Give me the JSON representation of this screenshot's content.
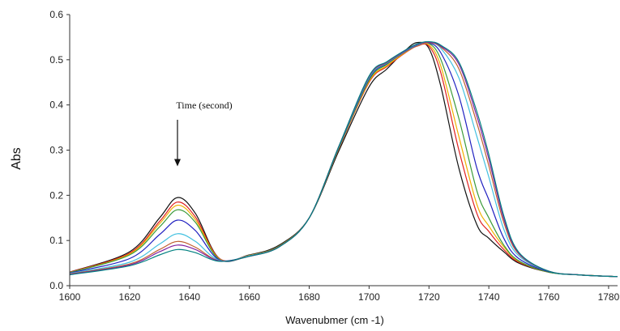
{
  "chart_data": {
    "type": "line",
    "title": "",
    "xlabel": "Wavenubmer (cm -1)",
    "ylabel": "Abs",
    "xlim": [
      1600,
      1783
    ],
    "ylim": [
      0,
      0.6
    ],
    "xticks": [
      1600,
      1620,
      1640,
      1660,
      1680,
      1700,
      1720,
      1740,
      1760,
      1780
    ],
    "yticks": [
      0.0,
      0.1,
      0.2,
      0.3,
      0.4,
      0.5,
      0.6
    ],
    "ytick_labels": [
      "0.0",
      "0.1",
      "0.2",
      "0.3",
      "0.4",
      "0.5",
      "0.6"
    ],
    "grid": false,
    "legend": "none",
    "annotation": {
      "text": "Time (second)",
      "arrow_to": [
        1636,
        0.3
      ]
    },
    "x": [
      1600,
      1620,
      1630,
      1636,
      1642,
      1650,
      1660,
      1670,
      1680,
      1690,
      1700,
      1706,
      1712,
      1716,
      1720,
      1724,
      1730,
      1736,
      1740,
      1745,
      1750,
      1760,
      1770,
      1783
    ],
    "series": [
      {
        "color": "#111111",
        "values": [
          0.03,
          0.075,
          0.15,
          0.195,
          0.16,
          0.06,
          0.068,
          0.09,
          0.15,
          0.3,
          0.44,
          0.48,
          0.52,
          0.538,
          0.525,
          0.44,
          0.26,
          0.135,
          0.105,
          0.075,
          0.05,
          0.03,
          0.024,
          0.02
        ]
      },
      {
        "color": "#e02020",
        "values": [
          0.03,
          0.072,
          0.142,
          0.185,
          0.152,
          0.06,
          0.067,
          0.088,
          0.15,
          0.305,
          0.45,
          0.485,
          0.515,
          0.53,
          0.53,
          0.47,
          0.3,
          0.16,
          0.12,
          0.08,
          0.052,
          0.03,
          0.024,
          0.02
        ]
      },
      {
        "color": "#f0b000",
        "values": [
          0.029,
          0.07,
          0.137,
          0.178,
          0.146,
          0.059,
          0.067,
          0.088,
          0.15,
          0.306,
          0.452,
          0.487,
          0.516,
          0.531,
          0.533,
          0.485,
          0.33,
          0.18,
          0.132,
          0.086,
          0.054,
          0.03,
          0.024,
          0.02
        ]
      },
      {
        "color": "#3a9a3a",
        "values": [
          0.029,
          0.068,
          0.13,
          0.168,
          0.14,
          0.058,
          0.066,
          0.088,
          0.15,
          0.307,
          0.455,
          0.49,
          0.518,
          0.532,
          0.536,
          0.5,
          0.37,
          0.21,
          0.15,
          0.09,
          0.055,
          0.03,
          0.024,
          0.02
        ]
      },
      {
        "color": "#2020c0",
        "values": [
          0.028,
          0.06,
          0.113,
          0.145,
          0.122,
          0.057,
          0.066,
          0.087,
          0.15,
          0.308,
          0.458,
          0.492,
          0.518,
          0.532,
          0.537,
          0.515,
          0.42,
          0.26,
          0.19,
          0.105,
          0.06,
          0.031,
          0.024,
          0.02
        ]
      },
      {
        "color": "#40c0e0",
        "values": [
          0.027,
          0.052,
          0.092,
          0.115,
          0.098,
          0.056,
          0.066,
          0.087,
          0.15,
          0.309,
          0.46,
          0.493,
          0.519,
          0.533,
          0.538,
          0.525,
          0.46,
          0.33,
          0.24,
          0.125,
          0.066,
          0.032,
          0.024,
          0.02
        ]
      },
      {
        "color": "#c06030",
        "values": [
          0.026,
          0.048,
          0.08,
          0.098,
          0.085,
          0.055,
          0.065,
          0.087,
          0.15,
          0.31,
          0.462,
          0.494,
          0.52,
          0.534,
          0.538,
          0.528,
          0.48,
          0.36,
          0.265,
          0.14,
          0.07,
          0.032,
          0.024,
          0.02
        ]
      },
      {
        "color": "#8020a0",
        "values": [
          0.025,
          0.046,
          0.075,
          0.09,
          0.08,
          0.055,
          0.065,
          0.086,
          0.15,
          0.31,
          0.463,
          0.495,
          0.52,
          0.534,
          0.539,
          0.53,
          0.49,
          0.375,
          0.28,
          0.148,
          0.072,
          0.032,
          0.024,
          0.02
        ]
      },
      {
        "color": "#008080",
        "values": [
          0.024,
          0.044,
          0.068,
          0.08,
          0.073,
          0.054,
          0.065,
          0.086,
          0.15,
          0.31,
          0.464,
          0.496,
          0.521,
          0.535,
          0.54,
          0.532,
          0.495,
          0.385,
          0.29,
          0.155,
          0.074,
          0.032,
          0.024,
          0.02
        ]
      }
    ]
  }
}
